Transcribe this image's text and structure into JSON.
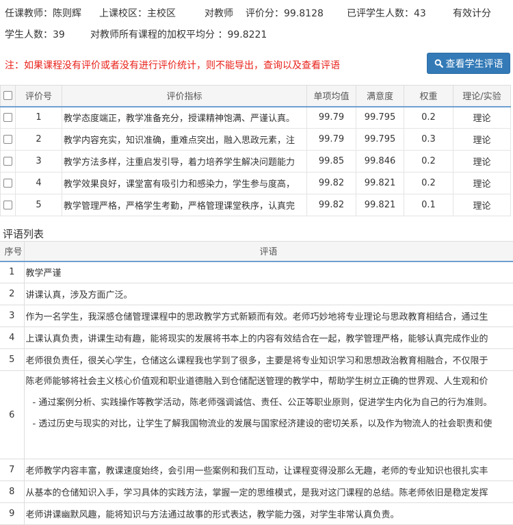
{
  "header": {
    "teacher": "任课教师：陈则辉",
    "campus": "上课校区：主校区",
    "score_label": "对教师",
    "score": "评价分：99.8128",
    "rated_count": "已评学生人数：43",
    "valid_label": "有效计分",
    "valid_count": "学生人数：39",
    "weighted_avg": "对教师所有课程的加权平均分 ：99.8221"
  },
  "note": "注：如果课程没有评价或者没有进行评价统计，则不能导出，查询以及查看评语",
  "view_button": {
    "label": "查看学生评语",
    "icon": "search-icon",
    "color": "#337ab7"
  },
  "indicators": {
    "columns": [
      "评价号",
      "评价指标",
      "单项均值",
      "满意度",
      "权重",
      "理论/实验"
    ],
    "rows": [
      {
        "id": "1",
        "text": "教学态度端正，教学准备充分，授课精神饱满、严谨认真。",
        "avg": "99.79",
        "sat": "99.795",
        "weight": "0.2",
        "type": "理论"
      },
      {
        "id": "2",
        "text": "教学内容充实，知识准确，重难点突出，融入思政元素，注",
        "avg": "99.79",
        "sat": "99.795",
        "weight": "0.3",
        "type": "理论"
      },
      {
        "id": "3",
        "text": "教学方法多样，注重启发引导，着力培养学生解决问题能力",
        "avg": "99.85",
        "sat": "99.846",
        "weight": "0.2",
        "type": "理论"
      },
      {
        "id": "4",
        "text": "教学效果良好，课堂富有吸引力和感染力，学生参与度高，",
        "avg": "99.82",
        "sat": "99.821",
        "weight": "0.2",
        "type": "理论"
      },
      {
        "id": "5",
        "text": "教学管理严格，严格学生考勤，严格管理课堂秩序，认真完",
        "avg": "99.82",
        "sat": "99.821",
        "weight": "0.1",
        "type": "理论"
      }
    ]
  },
  "comments": {
    "title": "评语列表",
    "columns": [
      "序号",
      "评语"
    ],
    "rows": [
      {
        "id": "1",
        "lines": [
          "教学严谨"
        ]
      },
      {
        "id": "2",
        "lines": [
          "讲课认真，涉及方面广泛。"
        ]
      },
      {
        "id": "3",
        "lines": [
          "作为一名学生，我深感仓储管理课程中的思政教学方式新颖而有效。老师巧妙地将专业理论与思政教育相结合，通过生"
        ]
      },
      {
        "id": "4",
        "lines": [
          "上课认真负责，讲课生动有趣，能将现实的发展将书本上的内容有效结合在一起，教学管理严格，能够认真完成作业的"
        ]
      },
      {
        "id": "5",
        "lines": [
          "老师很负责任，很关心学生，仓储这么课程我也学到了很多，主要是将专业知识学习和思想政治教育相融合，不仅限于"
        ]
      },
      {
        "id": "6",
        "lines": [
          "陈老师能够将社会主义核心价值观和职业道德融入到仓储配送管理的教学中，帮助学生树立正确的世界观、人生观和价",
          "- 通过案例分析、实践操作等教学活动，陈老师强调诚信、责任、公正等职业原则，促进学生内化为自己的行为准则。",
          "- 透过历史与现实的对比，让学生了解我国物流业的发展与国家经济建设的密切关系，以及作为物流人的社会职责和使"
        ]
      },
      {
        "id": "7",
        "lines": [
          "老师教学内容丰富，教课速度始终，会引用一些案例和我们互动，让课程变得没那么无趣，老师的专业知识也很扎实丰"
        ]
      },
      {
        "id": "8",
        "lines": [
          "从基本的仓储知识入手，学习具体的实践方法，掌握一定的思维模式，是我对这门课程的总结。陈老师依旧是稳定发挥"
        ]
      },
      {
        "id": "9",
        "lines": [
          "老师讲课幽默风趣，能将知识与方法通过故事的形式表达，教学能力强，对学生非常认真负责。"
        ]
      }
    ]
  }
}
